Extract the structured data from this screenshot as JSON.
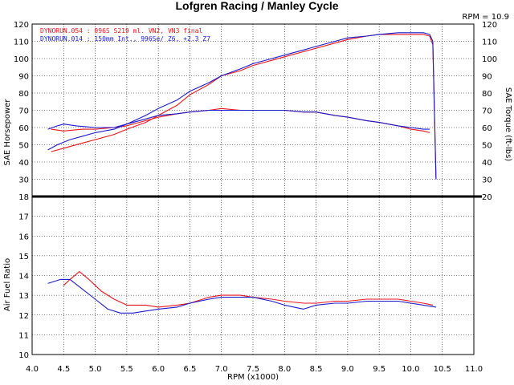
{
  "chart_data": {
    "type": "line",
    "title": "Lofgren Racing / Manley Cycle",
    "corner_label": "RPM = 10.9",
    "xlabel": "RPM (x1000)",
    "x_range": [
      4.0,
      11.0
    ],
    "x_ticks": [
      "4.0",
      "4.5",
      "5.0",
      "5.5",
      "6.0",
      "6.5",
      "7.0",
      "7.5",
      "8.0",
      "8.5",
      "9.0",
      "9.5",
      "10.0",
      "10.5",
      "11.0"
    ],
    "grid": true,
    "legend_position": "top-left",
    "panels": {
      "top": {
        "ylabel_left": "SAE Horsepower",
        "ylabel_right": "SAE Torque (ft-lbs)",
        "ylim": [
          20,
          120
        ],
        "y_ticks_left": [
          "30",
          "40",
          "50",
          "60",
          "70",
          "80",
          "90",
          "100",
          "110",
          "120"
        ],
        "y_ticks_right": [
          "20",
          "30",
          "40",
          "50",
          "60",
          "70",
          "80",
          "90",
          "100",
          "110",
          "120"
        ]
      },
      "bottom": {
        "ylabel": "Air Fuel Ratio",
        "ylim": [
          10,
          18
        ],
        "y_ticks": [
          "10",
          "11",
          "12",
          "13",
          "14",
          "15",
          "16",
          "17",
          "18"
        ]
      }
    },
    "series": [
      {
        "name": "DYNORUN.054 : 996S S219 ml. VN2, VN3 final",
        "color": "#e8141c",
        "horsepower": {
          "x": [
            4.3,
            4.5,
            4.8,
            5.0,
            5.3,
            5.5,
            5.8,
            6.0,
            6.3,
            6.5,
            6.8,
            7.0,
            7.3,
            7.5,
            7.8,
            8.0,
            8.3,
            8.5,
            8.8,
            9.0,
            9.3,
            9.5,
            9.8,
            10.0,
            10.2,
            10.3,
            10.35,
            10.4
          ],
          "y": [
            46,
            48,
            51,
            53,
            56,
            59,
            63,
            67,
            73,
            79,
            85,
            90,
            93,
            96,
            99,
            101,
            104,
            106,
            109,
            111,
            113,
            114,
            114,
            114,
            114,
            113,
            108,
            30
          ]
        },
        "torque": {
          "x": [
            4.3,
            4.5,
            4.8,
            5.0,
            5.3,
            5.5,
            5.8,
            6.0,
            6.3,
            6.5,
            6.8,
            7.0,
            7.3,
            7.5,
            7.8,
            8.0,
            8.3,
            8.5,
            8.8,
            9.0,
            9.3,
            9.5,
            9.8,
            10.0,
            10.2,
            10.3
          ],
          "y": [
            59,
            58,
            59,
            59,
            60,
            61,
            64,
            66,
            68,
            69,
            70,
            71,
            70,
            70,
            70,
            70,
            69,
            69,
            67,
            66,
            64,
            63,
            61,
            59,
            58,
            57
          ]
        },
        "afr": {
          "x": [
            4.5,
            4.6,
            4.75,
            4.9,
            5.1,
            5.3,
            5.5,
            5.8,
            6.0,
            6.3,
            6.5,
            6.8,
            7.0,
            7.3,
            7.5,
            7.8,
            8.0,
            8.3,
            8.5,
            8.8,
            9.0,
            9.3,
            9.5,
            9.8,
            10.0,
            10.2,
            10.35
          ],
          "y": [
            13.5,
            13.8,
            14.2,
            13.8,
            13.2,
            12.8,
            12.5,
            12.5,
            12.4,
            12.5,
            12.6,
            12.9,
            13.0,
            13.0,
            12.9,
            12.8,
            12.7,
            12.6,
            12.6,
            12.7,
            12.7,
            12.8,
            12.8,
            12.8,
            12.7,
            12.6,
            12.5
          ]
        }
      },
      {
        "name": "DYNORUN.014 : 150mm Int., 996Se/ Z6, +2.3 Z7",
        "color": "#1a1acd",
        "horsepower": {
          "x": [
            4.25,
            4.4,
            4.6,
            4.8,
            5.0,
            5.3,
            5.5,
            5.8,
            6.0,
            6.3,
            6.5,
            6.8,
            7.0,
            7.3,
            7.5,
            7.8,
            8.0,
            8.3,
            8.5,
            8.8,
            9.0,
            9.3,
            9.5,
            9.8,
            10.0,
            10.2,
            10.3,
            10.35,
            10.4
          ],
          "y": [
            47,
            50,
            53,
            55,
            57,
            59,
            62,
            67,
            71,
            76,
            81,
            86,
            90,
            94,
            97,
            100,
            102,
            105,
            107,
            110,
            112,
            113,
            114,
            115,
            115,
            115,
            114,
            110,
            30
          ]
        },
        "torque": {
          "x": [
            4.25,
            4.4,
            4.5,
            4.7,
            5.0,
            5.3,
            5.5,
            5.8,
            6.0,
            6.3,
            6.5,
            6.8,
            7.0,
            7.3,
            7.5,
            7.8,
            8.0,
            8.3,
            8.5,
            8.8,
            9.0,
            9.3,
            9.5,
            9.8,
            10.0,
            10.2,
            10.3
          ],
          "y": [
            59,
            61,
            62,
            61,
            60,
            60,
            62,
            65,
            67,
            68,
            69,
            70,
            70,
            70,
            70,
            70,
            70,
            69,
            69,
            67,
            66,
            64,
            63,
            61,
            60,
            59,
            59
          ]
        },
        "afr": {
          "x": [
            4.25,
            4.45,
            4.6,
            4.8,
            5.0,
            5.2,
            5.4,
            5.6,
            5.8,
            6.0,
            6.3,
            6.5,
            6.8,
            7.0,
            7.3,
            7.5,
            7.8,
            8.0,
            8.3,
            8.5,
            8.8,
            9.0,
            9.3,
            9.5,
            9.8,
            10.0,
            10.2,
            10.4
          ],
          "y": [
            13.6,
            13.8,
            13.8,
            13.3,
            12.8,
            12.3,
            12.1,
            12.1,
            12.2,
            12.3,
            12.4,
            12.6,
            12.8,
            12.9,
            12.9,
            12.9,
            12.7,
            12.5,
            12.3,
            12.5,
            12.6,
            12.6,
            12.7,
            12.7,
            12.7,
            12.6,
            12.5,
            12.4
          ]
        }
      }
    ]
  }
}
